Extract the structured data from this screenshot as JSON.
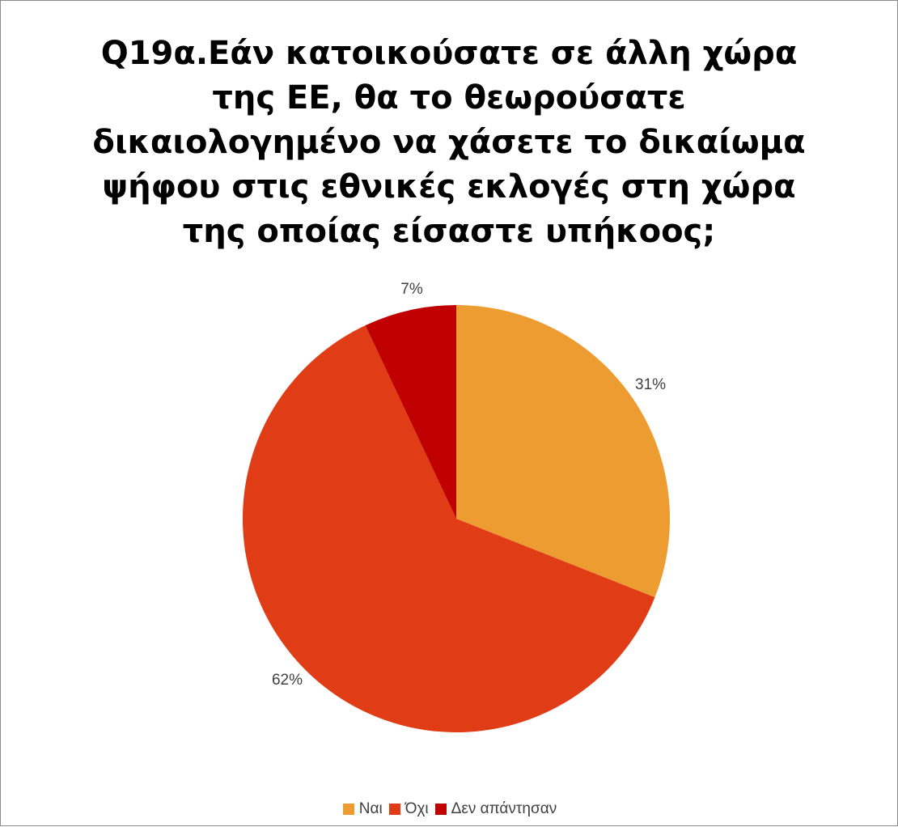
{
  "chart_data": {
    "type": "pie",
    "title": "Q19α.Εάν κατοικούσατε σε άλλη χώρα της ΕΕ, θα το θεωρούσατε δικαιολογημένο να χάσετε το δικαίωμα ψήφου στις εθνικές εκλογές στη χώρα της οποίας είσαστε υπήκοος;",
    "categories": [
      "Ναι",
      "Όχι",
      "Δεν απάντησαν"
    ],
    "values": [
      31,
      62,
      7
    ],
    "data_labels": [
      "31%",
      "62%",
      "7%"
    ],
    "colors": [
      "#ED9C31",
      "#E03C16",
      "#C00000"
    ],
    "start_angle_deg": 0,
    "direction": "clockwise",
    "legend_position": "bottom"
  }
}
